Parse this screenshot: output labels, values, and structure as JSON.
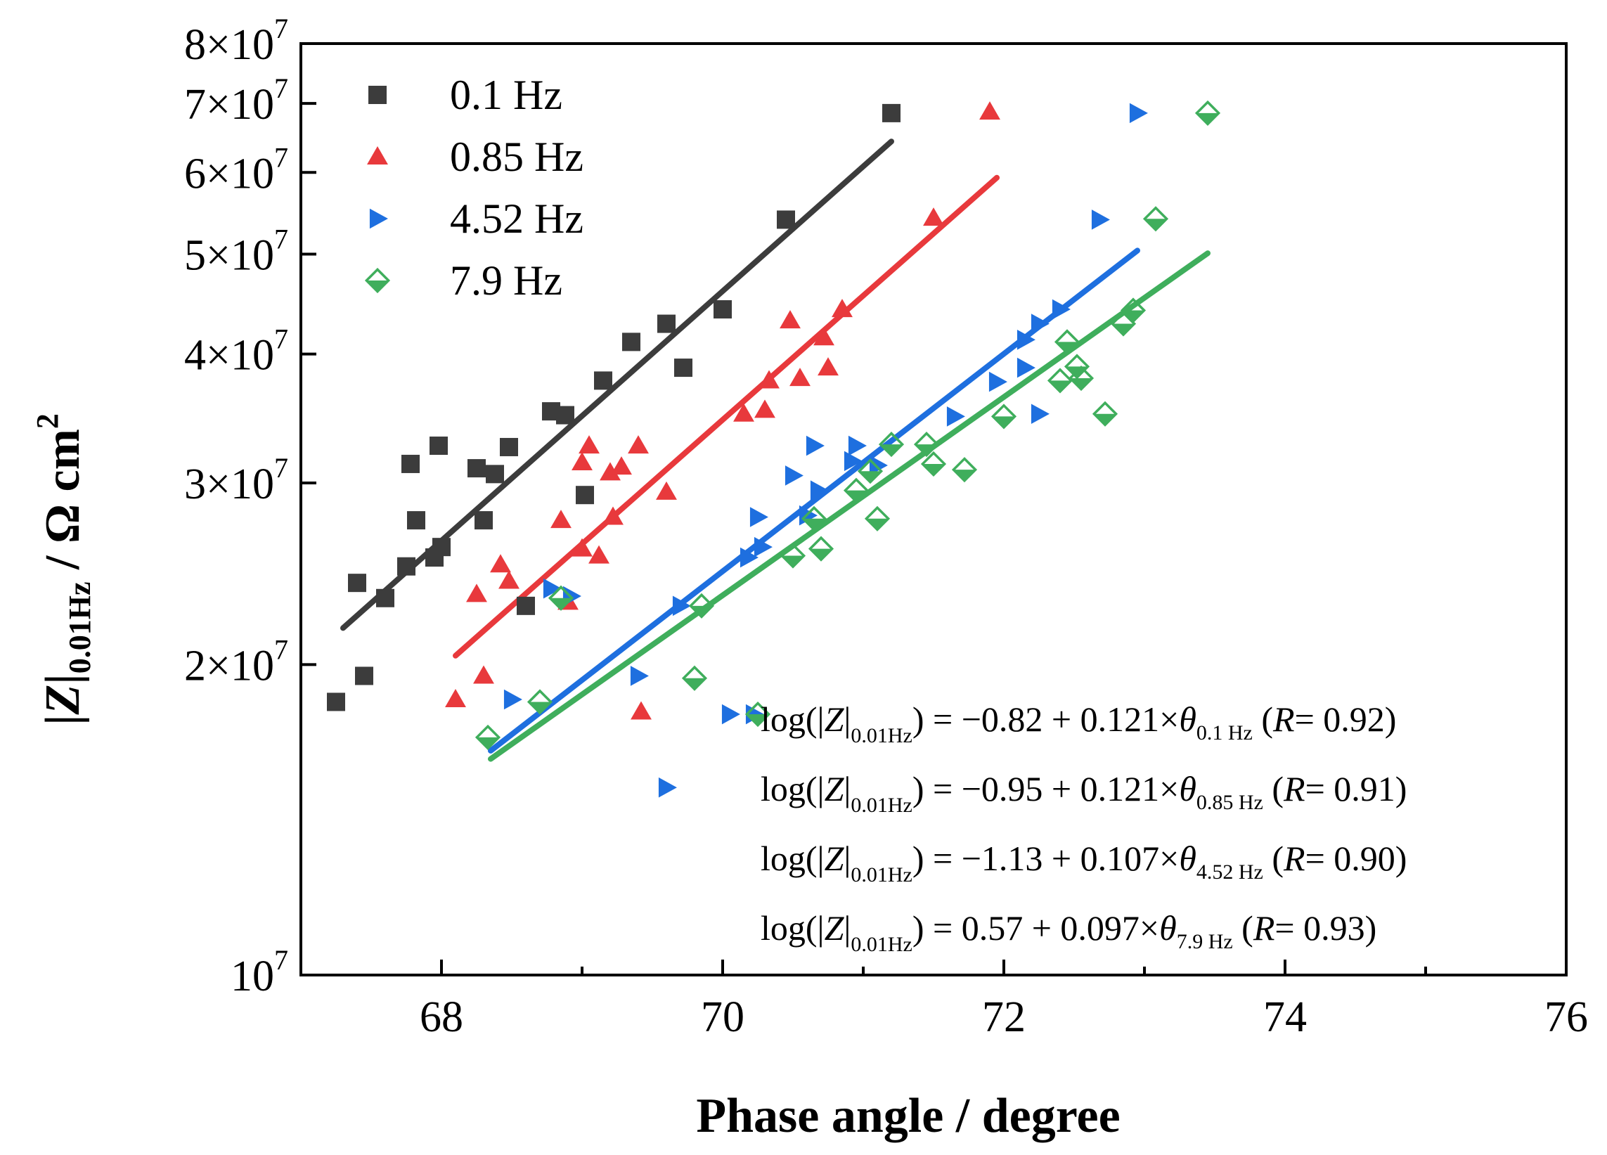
{
  "chart_data": {
    "type": "scatter",
    "xlabel": "Phase angle / degree",
    "ylabel": {
      "prefix": "|",
      "italic": "Z",
      "mid": "|",
      "sub": "0.01Hz",
      "suffix": " / Ω cm",
      "sup": "2"
    },
    "xlim": [
      67,
      76
    ],
    "ylim": [
      10000000,
      80000000
    ],
    "yscale": "log",
    "xticks": [
      {
        "value": 68,
        "label": "68"
      },
      {
        "value": 70,
        "label": "70"
      },
      {
        "value": 72,
        "label": "72"
      },
      {
        "value": 74,
        "label": "74"
      },
      {
        "value": 76,
        "label": "76"
      }
    ],
    "yticks": [
      {
        "value": 10000000,
        "mant": "10",
        "exp": "7"
      },
      {
        "value": 20000000,
        "mant": "2×10",
        "exp": "7"
      },
      {
        "value": 30000000,
        "mant": "3×10",
        "exp": "7"
      },
      {
        "value": 40000000,
        "mant": "4×10",
        "exp": "7"
      },
      {
        "value": 50000000,
        "mant": "5×10",
        "exp": "7"
      },
      {
        "value": 60000000,
        "mant": "6×10",
        "exp": "7"
      },
      {
        "value": 70000000,
        "mant": "7×10",
        "exp": "7"
      },
      {
        "value": 80000000,
        "mant": "8×10",
        "exp": "7"
      }
    ],
    "legend_position": "top-left",
    "series": [
      {
        "name": "0.1 Hz",
        "marker": "square",
        "color": "#3c3c3c",
        "fit": {
          "x": [
            67.3,
            71.2
          ],
          "y": [
            21700000,
            64300000
          ]
        },
        "points": [
          [
            67.25,
            18400000
          ],
          [
            67.4,
            24000000
          ],
          [
            67.45,
            19500000
          ],
          [
            67.6,
            23200000
          ],
          [
            67.75,
            24900000
          ],
          [
            67.78,
            31300000
          ],
          [
            67.82,
            27600000
          ],
          [
            67.95,
            25400000
          ],
          [
            67.98,
            32600000
          ],
          [
            68.0,
            26000000
          ],
          [
            68.25,
            31000000
          ],
          [
            68.3,
            27600000
          ],
          [
            68.38,
            30600000
          ],
          [
            68.48,
            32500000
          ],
          [
            68.6,
            22800000
          ],
          [
            68.78,
            35200000
          ],
          [
            68.88,
            34900000
          ],
          [
            69.02,
            29200000
          ],
          [
            69.15,
            37700000
          ],
          [
            69.35,
            41100000
          ],
          [
            69.6,
            42800000
          ],
          [
            69.72,
            38800000
          ],
          [
            70.0,
            44200000
          ],
          [
            70.45,
            54000000
          ],
          [
            71.2,
            68500000
          ]
        ]
      },
      {
        "name": "0.85 Hz",
        "marker": "triangle-up",
        "color": "#e8393c",
        "fit": {
          "x": [
            68.1,
            71.95
          ],
          "y": [
            20400000,
            59300000
          ]
        },
        "points": [
          [
            68.1,
            18500000
          ],
          [
            68.25,
            23400000
          ],
          [
            68.3,
            19500000
          ],
          [
            68.42,
            25000000
          ],
          [
            68.48,
            24100000
          ],
          [
            68.85,
            27600000
          ],
          [
            68.9,
            23000000
          ],
          [
            69.0,
            31400000
          ],
          [
            69.0,
            25900000
          ],
          [
            69.05,
            32600000
          ],
          [
            69.12,
            25500000
          ],
          [
            69.2,
            30700000
          ],
          [
            69.22,
            27800000
          ],
          [
            69.28,
            31100000
          ],
          [
            69.4,
            32600000
          ],
          [
            69.42,
            18000000
          ],
          [
            69.6,
            29400000
          ],
          [
            70.15,
            35000000
          ],
          [
            70.3,
            35300000
          ],
          [
            70.33,
            37700000
          ],
          [
            70.48,
            43100000
          ],
          [
            70.55,
            37900000
          ],
          [
            70.72,
            41500000
          ],
          [
            70.75,
            38800000
          ],
          [
            70.85,
            44200000
          ],
          [
            71.5,
            54200000
          ],
          [
            71.9,
            68700000
          ]
        ]
      },
      {
        "name": "4.52 Hz",
        "marker": "triangle-right",
        "color": "#1e6fdf",
        "fit": {
          "x": [
            68.35,
            72.95
          ],
          "y": [
            16500000,
            50400000
          ]
        },
        "points": [
          [
            68.5,
            18500000
          ],
          [
            68.78,
            23700000
          ],
          [
            68.92,
            23300000
          ],
          [
            69.4,
            19500000
          ],
          [
            69.6,
            15200000
          ],
          [
            69.7,
            22800000
          ],
          [
            70.05,
            17900000
          ],
          [
            70.18,
            25400000
          ],
          [
            70.22,
            17900000
          ],
          [
            70.25,
            27800000
          ],
          [
            70.28,
            26000000
          ],
          [
            70.5,
            30500000
          ],
          [
            70.6,
            27900000
          ],
          [
            70.65,
            32600000
          ],
          [
            70.68,
            29500000
          ],
          [
            70.92,
            31500000
          ],
          [
            70.95,
            32600000
          ],
          [
            71.1,
            31200000
          ],
          [
            71.65,
            34800000
          ],
          [
            71.95,
            37600000
          ],
          [
            72.15,
            41300000
          ],
          [
            72.15,
            38800000
          ],
          [
            72.25,
            42800000
          ],
          [
            72.25,
            35000000
          ],
          [
            72.4,
            44200000
          ],
          [
            72.68,
            54000000
          ],
          [
            72.95,
            68500000
          ]
        ]
      },
      {
        "name": "7.9 Hz",
        "marker": "half-diamond",
        "color": "#3fae5c",
        "fit": {
          "x": [
            68.35,
            73.45
          ],
          "y": [
            16200000,
            50100000
          ]
        },
        "points": [
          [
            68.33,
            17000000
          ],
          [
            68.7,
            18400000
          ],
          [
            68.85,
            23200000
          ],
          [
            69.8,
            19400000
          ],
          [
            69.85,
            22800000
          ],
          [
            70.25,
            17900000
          ],
          [
            70.5,
            25500000
          ],
          [
            70.65,
            27700000
          ],
          [
            70.7,
            25900000
          ],
          [
            70.95,
            29500000
          ],
          [
            71.05,
            30800000
          ],
          [
            71.1,
            27700000
          ],
          [
            71.2,
            32700000
          ],
          [
            71.45,
            32700000
          ],
          [
            71.5,
            31300000
          ],
          [
            71.72,
            30900000
          ],
          [
            72.0,
            34800000
          ],
          [
            72.4,
            37700000
          ],
          [
            72.45,
            41100000
          ],
          [
            72.52,
            38900000
          ],
          [
            72.55,
            37900000
          ],
          [
            72.72,
            35000000
          ],
          [
            72.85,
            42800000
          ],
          [
            72.92,
            44100000
          ],
          [
            73.08,
            54100000
          ],
          [
            73.45,
            68500000
          ]
        ]
      }
    ],
    "annotations": [
      {
        "pre": "log(|",
        "z": "Z",
        "mid": "|",
        "sub": "0.01Hz",
        "body": ") = −0.82 + 0.121×",
        "theta": "θ",
        "tsub": "0.1 Hz",
        "r_open": " (",
        "r": "R",
        "r_close": "= 0.92)"
      },
      {
        "pre": "log(|",
        "z": "Z",
        "mid": "|",
        "sub": "0.01Hz",
        "body": ") = −0.95 + 0.121×",
        "theta": "θ",
        "tsub": "0.85 Hz",
        "r_open": " (",
        "r": "R",
        "r_close": "= 0.91)"
      },
      {
        "pre": "log(|",
        "z": "Z",
        "mid": "|",
        "sub": "0.01Hz",
        "body": ") = −1.13 + 0.107×",
        "theta": "θ",
        "tsub": "4.52 Hz",
        "r_open": " (",
        "r": "R",
        "r_close": "= 0.90)"
      },
      {
        "pre": "log(|",
        "z": "Z",
        "mid": "|",
        "sub": "0.01Hz",
        "body": ") = 0.57 + 0.097×",
        "theta": "θ",
        "tsub": "7.9 Hz",
        "r_open": " (",
        "r": "R",
        "r_close": "= 0.93)"
      }
    ]
  }
}
